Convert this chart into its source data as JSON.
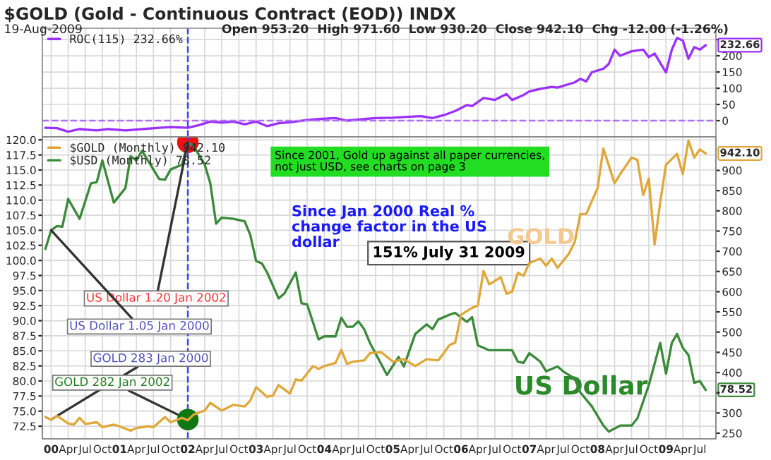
{
  "chart_data": [
    {
      "type": "line",
      "title": "$GOLD (Gold - Continuous Contract (EOD)) INDX",
      "subtitle": "19-Aug-2009",
      "annotations": [
        "Open 953.20  High 971.60  Low 930.20  Close 942.10  Chg -12.00 (-1.26%)"
      ],
      "xlim": [
        "1999-11-15",
        "2009-09-25"
      ],
      "xticks": [
        {
          "value": "2000-01",
          "label": null
        },
        {
          "value": "2000-04",
          "label": null
        },
        {
          "value": "2000-07",
          "label": null
        },
        {
          "value": "2000-10",
          "label": null
        },
        {
          "value": "2001-01",
          "label": null
        },
        {
          "value": "2001-04",
          "label": null
        },
        {
          "value": "2001-07",
          "label": null
        },
        {
          "value": "2001-10",
          "label": null
        },
        {
          "value": "2002-01",
          "label": null
        },
        {
          "value": "2002-04",
          "label": null
        },
        {
          "value": "2002-07",
          "label": null
        },
        {
          "value": "2002-10",
          "label": null
        },
        {
          "value": "2003-01",
          "label": null
        },
        {
          "value": "2003-04",
          "label": null
        },
        {
          "value": "2003-07",
          "label": null
        },
        {
          "value": "2003-10",
          "label": null
        },
        {
          "value": "2004-01",
          "label": null
        },
        {
          "value": "2004-04",
          "label": null
        },
        {
          "value": "2004-07",
          "label": null
        },
        {
          "value": "2004-10",
          "label": null
        },
        {
          "value": "2005-01",
          "label": null
        },
        {
          "value": "2005-04",
          "label": null
        },
        {
          "value": "2005-07",
          "label": null
        },
        {
          "value": "2005-10",
          "label": null
        },
        {
          "value": "2006-01",
          "label": null
        },
        {
          "value": "2006-04",
          "label": null
        },
        {
          "value": "2006-07",
          "label": null
        },
        {
          "value": "2006-10",
          "label": null
        },
        {
          "value": "2007-01",
          "label": null
        },
        {
          "value": "2007-04",
          "label": null
        },
        {
          "value": "2007-07",
          "label": null
        },
        {
          "value": "2007-10",
          "label": null
        },
        {
          "value": "2008-01",
          "label": null
        },
        {
          "value": "2008-04",
          "label": null
        },
        {
          "value": "2008-07",
          "label": null
        },
        {
          "value": "2008-10",
          "label": null
        },
        {
          "value": "2009-01",
          "label": null
        },
        {
          "value": "2009-04",
          "label": null
        },
        {
          "value": "2009-07",
          "label": null
        }
      ],
      "ylim": [
        -50,
        285
      ],
      "yticks": [
        0,
        50,
        100,
        150,
        200,
        {
          "value": 250,
          "label": null
        }
      ],
      "tick_labels": "y",
      "grid": true,
      "legend": "top left",
      "ref_lines": [
        {
          "axis": "y",
          "value": 0,
          "color": "#b070f0",
          "line_style": "dashed"
        },
        {
          "axis": "x",
          "value": "2002-01",
          "color": "#4040ff",
          "line_style": "dashed"
        }
      ],
      "series": [
        {
          "name": "ROC(115) 232.66%",
          "color": "#9b30ff",
          "x": [
            "1999-12",
            "2000-02",
            "2000-04",
            "2000-06",
            "2000-09",
            "2000-11",
            "2001-02",
            "2001-05",
            "2001-08",
            "2001-10",
            "2002-01",
            "2002-03",
            "2002-05",
            "2002-07",
            "2002-09",
            "2002-11",
            "2003-01",
            "2003-03",
            "2003-05",
            "2003-07",
            "2003-10",
            "2003-12",
            "2004-03",
            "2004-05",
            "2004-08",
            "2004-10",
            "2005-01",
            "2005-03",
            "2005-06",
            "2005-08",
            "2005-10",
            "2005-12",
            "2006-02",
            "2006-03",
            "2006-05",
            "2006-07",
            "2006-09",
            "2006-10",
            "2006-12",
            "2007-01",
            "2007-03",
            "2007-05",
            "2007-06",
            "2007-09",
            "2007-10",
            "2007-11",
            "2007-12",
            "2008-02",
            "2008-03",
            "2008-04",
            "2008-05",
            "2008-07",
            "2008-09",
            "2008-10",
            "2008-11",
            "2009-01",
            "2009-02",
            "2009-03",
            "2009-04",
            "2009-05",
            "2009-06",
            "2009-07",
            "2009-08"
          ],
          "values": [
            -22,
            -23,
            -34,
            -26,
            -30,
            -26,
            -30,
            -26,
            -22,
            -20,
            -22,
            -14,
            -3,
            -6,
            -3,
            -11,
            -3,
            -17,
            -8,
            -5,
            2,
            5,
            8,
            0,
            5,
            8,
            9,
            11,
            14,
            8,
            17,
            30,
            48,
            45,
            70,
            64,
            82,
            64,
            79,
            90,
            98,
            104,
            102,
            118,
            129,
            121,
            149,
            160,
            175,
            219,
            200,
            214,
            219,
            196,
            207,
            149,
            219,
            255,
            247,
            191,
            227,
            219,
            232.66
          ],
          "value_labels": [
            null,
            null,
            null,
            null,
            null,
            null,
            null,
            null,
            null,
            null,
            null,
            null,
            null,
            null,
            null,
            null,
            null,
            null,
            null,
            null,
            null,
            null,
            null,
            null,
            null,
            null,
            null,
            null,
            null,
            null,
            null,
            null,
            null,
            null,
            null,
            null,
            null,
            null,
            null,
            null,
            null,
            null,
            null,
            null,
            null,
            null,
            null,
            null,
            null,
            null,
            null,
            null,
            null,
            null,
            null,
            null,
            null,
            null,
            null,
            null,
            null,
            null,
            "232.66"
          ]
        }
      ]
    },
    {
      "type": "line",
      "xlim": [
        "1999-11-15",
        "2009-09-25"
      ],
      "xticks": [
        {
          "value": "2000-01",
          "label": "00"
        },
        {
          "value": "2000-04",
          "label": "Apr"
        },
        {
          "value": "2000-07",
          "label": "Jul"
        },
        {
          "value": "2000-10",
          "label": "Oct"
        },
        {
          "value": "2001-01",
          "label": "01"
        },
        {
          "value": "2001-04",
          "label": "Apr"
        },
        {
          "value": "2001-07",
          "label": "Jul"
        },
        {
          "value": "2001-10",
          "label": "Oct"
        },
        {
          "value": "2002-01",
          "label": "02"
        },
        {
          "value": "2002-04",
          "label": "Apr"
        },
        {
          "value": "2002-07",
          "label": "Jul"
        },
        {
          "value": "2002-10",
          "label": "Oct"
        },
        {
          "value": "2003-01",
          "label": "03"
        },
        {
          "value": "2003-04",
          "label": "Apr"
        },
        {
          "value": "2003-07",
          "label": "Jul"
        },
        {
          "value": "2003-10",
          "label": "Oct"
        },
        {
          "value": "2004-01",
          "label": "04"
        },
        {
          "value": "2004-04",
          "label": "Apr"
        },
        {
          "value": "2004-07",
          "label": "Jul"
        },
        {
          "value": "2004-10",
          "label": "Oct"
        },
        {
          "value": "2005-01",
          "label": "05"
        },
        {
          "value": "2005-04",
          "label": "Apr"
        },
        {
          "value": "2005-07",
          "label": "Jul"
        },
        {
          "value": "2005-10",
          "label": "Oct"
        },
        {
          "value": "2006-01",
          "label": "06"
        },
        {
          "value": "2006-04",
          "label": "Apr"
        },
        {
          "value": "2006-07",
          "label": "Jul"
        },
        {
          "value": "2006-10",
          "label": "Oct"
        },
        {
          "value": "2007-01",
          "label": "07"
        },
        {
          "value": "2007-04",
          "label": "Apr"
        },
        {
          "value": "2007-07",
          "label": "Jul"
        },
        {
          "value": "2007-10",
          "label": "Oct"
        },
        {
          "value": "2008-01",
          "label": "08"
        },
        {
          "value": "2008-04",
          "label": "Apr"
        },
        {
          "value": "2008-07",
          "label": "Jul"
        },
        {
          "value": "2008-10",
          "label": "Oct"
        },
        {
          "value": "2009-01",
          "label": "09"
        },
        {
          "value": "2009-04",
          "label": "Apr"
        },
        {
          "value": "2009-07",
          "label": "Jul"
        }
      ],
      "ylim": [
        70.4,
        120.5
      ],
      "yticks": [
        {
          "value": 72.5,
          "label": "72.5"
        },
        {
          "value": 75,
          "label": "75.0"
        },
        {
          "value": 77.5,
          "label": "77.5"
        },
        {
          "value": 80,
          "label": "80.0"
        },
        {
          "value": 82.5,
          "label": "82.5"
        },
        {
          "value": 85,
          "label": "85.0"
        },
        {
          "value": 87.5,
          "label": "87.5"
        },
        {
          "value": 90,
          "label": "90.0"
        },
        {
          "value": 92.5,
          "label": "92.5"
        },
        {
          "value": 95,
          "label": "95.0"
        },
        {
          "value": 97.5,
          "label": "97.5"
        },
        {
          "value": 100,
          "label": "100.0"
        },
        {
          "value": 102.5,
          "label": "102.5"
        },
        {
          "value": 105,
          "label": "105.0"
        },
        {
          "value": 107.5,
          "label": "107.5"
        },
        {
          "value": 110,
          "label": "110.0"
        },
        {
          "value": 112.5,
          "label": "112.5"
        },
        {
          "value": 115,
          "label": "115.0"
        },
        {
          "value": 117.5,
          "label": "117.5"
        },
        {
          "value": 120,
          "label": "120.0"
        }
      ],
      "y2lim": [
        236,
        983
      ],
      "y2ticks": [
        250,
        300,
        {
          "value": 350,
          "label": null
        },
        400,
        450,
        500,
        550,
        600,
        650,
        700,
        750,
        800,
        850,
        900
      ],
      "grid": true,
      "legend": "top left",
      "ref_lines": [
        {
          "axis": "x",
          "value": "2002-01",
          "color": "#4040ff",
          "line_style": "dashed"
        }
      ],
      "annotations": [
        {
          "text": "US Dollar 1.20 Jan 2002",
          "x": "2002-01",
          "y": 119.6
        },
        {
          "text": "US Dollar 1.05 Jan 2000",
          "x": "2000-01",
          "y": 105
        },
        {
          "text": "GOLD 283 Jan 2000",
          "x": "2000-01",
          "y": 73.6
        },
        {
          "text": "GOLD 282 Jan 2002",
          "x": "2002-01",
          "y": 73.6
        },
        "Since 2001, Gold up against all paper currencies,\nnot just USD, see charts on page 3",
        "Since Jan 2000 Real %\nchange factor in the US\ndollar",
        "151% July 31 2009",
        "GOLD",
        "US Dollar"
      ],
      "series": [
        {
          "name": "$GOLD (Monthly) 942.10",
          "color": "#e0a83a",
          "axis": "y2",
          "x": [
            "1999-12",
            "2000-01",
            "2000-02",
            "2000-04",
            "2000-05",
            "2000-06",
            "2000-07",
            "2000-09",
            "2000-10",
            "2000-12",
            "2001-01",
            "2001-03",
            "2001-04",
            "2001-06",
            "2001-07",
            "2001-09",
            "2001-10",
            "2001-12",
            "2002-01",
            "2002-02",
            "2002-04",
            "2002-05",
            "2002-07",
            "2002-09",
            "2002-11",
            "2002-12",
            "2003-01",
            "2003-03",
            "2003-04",
            "2003-05",
            "2003-07",
            "2003-08",
            "2003-09",
            "2003-11",
            "2003-12",
            "2004-01",
            "2004-03",
            "2004-04",
            "2004-05",
            "2004-06",
            "2004-08",
            "2004-09",
            "2004-11",
            "2005-01",
            "2005-03",
            "2005-05",
            "2005-07",
            "2005-09",
            "2005-11",
            "2005-12",
            "2006-01",
            "2006-03",
            "2006-04",
            "2006-05",
            "2006-06",
            "2006-08",
            "2006-09",
            "2006-10",
            "2006-11",
            "2006-12",
            "2007-01",
            "2007-03",
            "2007-04",
            "2007-05",
            "2007-06",
            "2007-08",
            "2007-09",
            "2007-10",
            "2007-11",
            "2008-01",
            "2008-02",
            "2008-04",
            "2008-05",
            "2008-07",
            "2008-08",
            "2008-09",
            "2008-10",
            "2008-11",
            "2008-12",
            "2009-01",
            "2009-03",
            "2009-04",
            "2009-05",
            "2009-06",
            "2009-07",
            "2009-08"
          ],
          "values": [
            290,
            283,
            293,
            274,
            271,
            288,
            273,
            277,
            265,
            271,
            267,
            256,
            263,
            267,
            265,
            290,
            277,
            288,
            282,
            296,
            306,
            325,
            306,
            320,
            316,
            331,
            364,
            340,
            343,
            369,
            348,
            383,
            380,
            416,
            409,
            416,
            424,
            456,
            421,
            427,
            430,
            448,
            450,
            427,
            433,
            416,
            433,
            430,
            468,
            474,
            543,
            560,
            566,
            651,
            618,
            636,
            595,
            600,
            647,
            639,
            671,
            682,
            664,
            682,
            659,
            694,
            723,
            792,
            792,
            856,
            954,
            868,
            891,
            932,
            926,
            839,
            880,
            717,
            821,
            914,
            941,
            891,
            974,
            932,
            952,
            942.1
          ],
          "value_labels": [
            null,
            null,
            null,
            null,
            null,
            null,
            null,
            null,
            null,
            null,
            null,
            null,
            null,
            null,
            null,
            null,
            null,
            null,
            null,
            null,
            null,
            null,
            null,
            null,
            null,
            null,
            null,
            null,
            null,
            null,
            null,
            null,
            null,
            null,
            null,
            null,
            null,
            null,
            null,
            null,
            null,
            null,
            null,
            null,
            null,
            null,
            null,
            null,
            null,
            null,
            null,
            null,
            null,
            null,
            null,
            null,
            null,
            null,
            null,
            null,
            null,
            null,
            null,
            null,
            null,
            null,
            null,
            null,
            null,
            null,
            null,
            null,
            null,
            null,
            null,
            null,
            null,
            null,
            null,
            null,
            null,
            null,
            null,
            null,
            null,
            "942.10"
          ]
        },
        {
          "name": "$USD (Monthly) 78.52",
          "color": "#3a8a3a",
          "x": [
            "1999-12",
            "2000-01",
            "2000-02",
            "2000-03",
            "2000-04",
            "2000-06",
            "2000-08",
            "2000-09",
            "2000-10",
            "2000-12",
            "2001-02",
            "2001-03",
            "2001-04",
            "2001-05",
            "2001-08",
            "2001-09",
            "2001-10",
            "2001-12",
            "2002-01",
            "2002-02",
            "2002-04",
            "2002-05",
            "2002-06",
            "2002-07",
            "2002-09",
            "2002-11",
            "2002-12",
            "2003-01",
            "2003-02",
            "2003-03",
            "2003-05",
            "2003-06",
            "2003-08",
            "2003-09",
            "2003-10",
            "2003-12",
            "2004-01",
            "2004-03",
            "2004-04",
            "2004-05",
            "2004-06",
            "2004-07",
            "2004-08",
            "2004-09",
            "2004-12",
            "2005-02",
            "2005-03",
            "2005-05",
            "2005-07",
            "2005-08",
            "2005-09",
            "2005-11",
            "2005-12",
            "2006-02",
            "2006-03",
            "2006-04",
            "2006-06",
            "2006-08",
            "2006-10",
            "2006-11",
            "2006-12",
            "2007-01",
            "2007-03",
            "2007-04",
            "2007-06",
            "2007-07",
            "2007-09",
            "2007-10",
            "2007-12",
            "2008-02",
            "2008-03",
            "2008-05",
            "2008-07",
            "2008-08",
            "2008-10",
            "2008-12",
            "2009-01",
            "2009-02",
            "2009-03",
            "2009-04",
            "2009-05",
            "2009-06",
            "2009-07",
            "2009-08"
          ],
          "values": [
            101.9,
            105,
            105.7,
            105.6,
            110.2,
            106.9,
            112.8,
            113.0,
            116.6,
            109.6,
            112.0,
            117.3,
            116.6,
            118.2,
            113.5,
            113.4,
            115.1,
            115.9,
            119.6,
            119.0,
            115.9,
            112.8,
            106.1,
            107.1,
            106.9,
            106.5,
            104.2,
            99.9,
            99.5,
            98.0,
            93.7,
            94.5,
            98.0,
            92.9,
            92.7,
            86.9,
            87.4,
            87.4,
            90.5,
            89.0,
            89.0,
            89.9,
            88.6,
            86.3,
            81.0,
            84.0,
            82.4,
            87.8,
            89.4,
            88.6,
            90.2,
            91.0,
            91.3,
            89.8,
            90.6,
            85.9,
            85.1,
            85.1,
            85.1,
            83.2,
            83.0,
            84.6,
            83.2,
            81.6,
            82.4,
            81.6,
            80.4,
            78.1,
            75.8,
            72.6,
            71.6,
            72.6,
            72.6,
            73.8,
            79.3,
            86.3,
            81.2,
            86.3,
            87.8,
            85.5,
            84.3,
            79.7,
            80.0,
            78.52
          ],
          "value_labels": [
            null,
            null,
            null,
            null,
            null,
            null,
            null,
            null,
            null,
            null,
            null,
            null,
            null,
            null,
            null,
            null,
            null,
            null,
            null,
            null,
            null,
            null,
            null,
            null,
            null,
            null,
            null,
            null,
            null,
            null,
            null,
            null,
            null,
            null,
            null,
            null,
            null,
            null,
            null,
            null,
            null,
            null,
            null,
            null,
            null,
            null,
            null,
            null,
            null,
            null,
            null,
            null,
            null,
            null,
            null,
            null,
            null,
            null,
            null,
            null,
            null,
            null,
            null,
            null,
            null,
            null,
            null,
            null,
            null,
            null,
            null,
            null,
            null,
            null,
            null,
            null,
            null,
            null,
            null,
            null,
            null,
            null,
            null,
            "78.52"
          ]
        }
      ]
    }
  ]
}
